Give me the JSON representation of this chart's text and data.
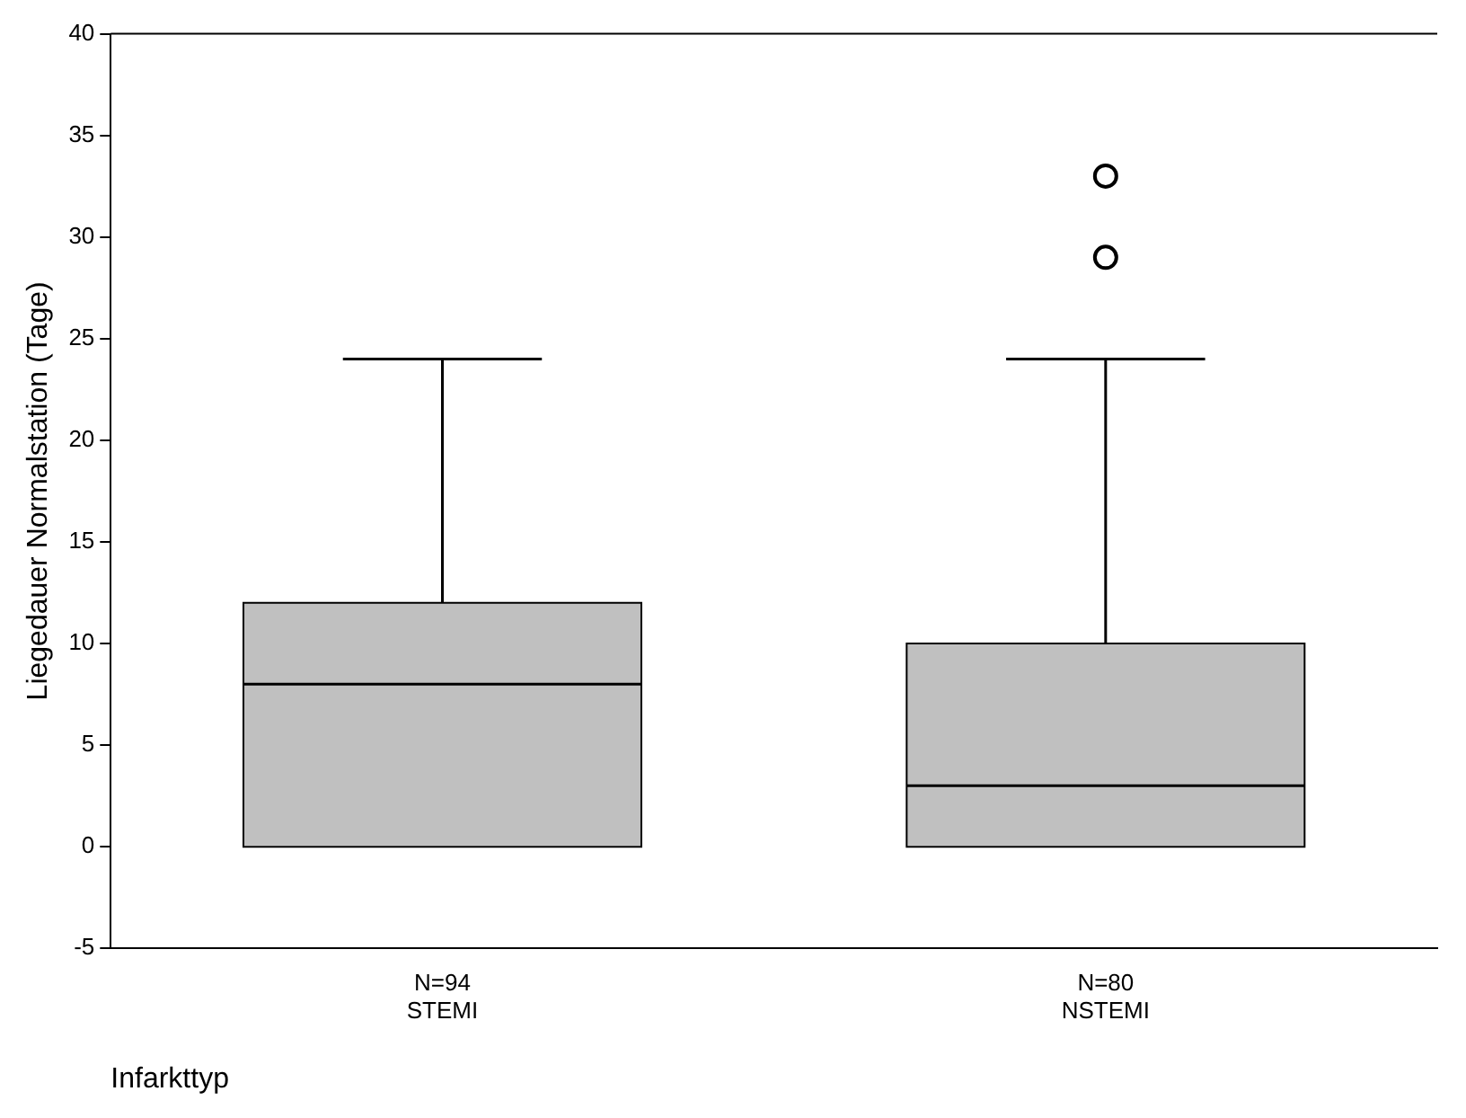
{
  "chart_data": {
    "type": "box",
    "ylabel": "Liegedauer Normalstation (Tage)",
    "xlabel": "Infarkttyp",
    "categories": [
      "N=94\nSTEMI",
      "N=80\nNSTEMI"
    ],
    "color": "#c0c0c0",
    "boxes": [
      {
        "low": 0,
        "q1": 0,
        "median": 8,
        "q3": 12,
        "high": 24
      },
      {
        "low": 0,
        "q1": 0,
        "median": 3,
        "q3": 10,
        "high": 24,
        "outliers": [
          29,
          33
        ]
      }
    ],
    "ylim": [
      -5,
      40
    ],
    "yticks": [
      -5,
      0,
      5,
      10,
      15,
      20,
      25,
      30,
      35,
      40
    ],
    "grid": false,
    "legend": false,
    "marker": "circle"
  }
}
